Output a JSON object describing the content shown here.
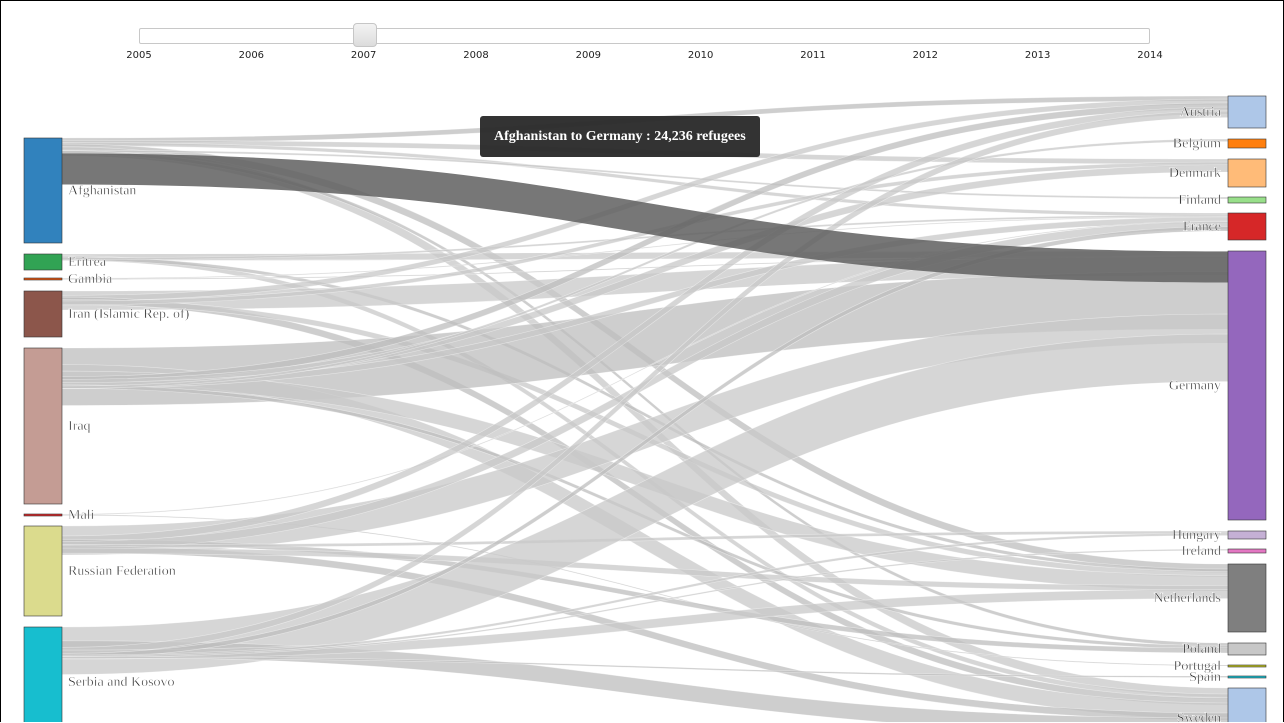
{
  "slider": {
    "years": [
      "2005",
      "2006",
      "2007",
      "2008",
      "2009",
      "2010",
      "2011",
      "2012",
      "2013",
      "2014"
    ],
    "selected_year": "2007"
  },
  "tooltip": {
    "text": "Afghanistan to Germany : 24,236 refugees"
  },
  "chart_data": {
    "type": "sankey",
    "title": "",
    "year": "2007",
    "sources": [
      {
        "name": "Afghanistan",
        "color": "#3182bd"
      },
      {
        "name": "Eritrea",
        "color": "#31a354"
      },
      {
        "name": "Gambia",
        "color": "#e6550d"
      },
      {
        "name": "Iran (Islamic Rep. of)",
        "color": "#8c564b"
      },
      {
        "name": "Iraq",
        "color": "#c49c94"
      },
      {
        "name": "Mali",
        "color": "#d62728"
      },
      {
        "name": "Russian Federation",
        "color": "#dbdb8d"
      },
      {
        "name": "Serbia and Kosovo",
        "color": "#17becf"
      }
    ],
    "targets": [
      {
        "name": "Austria",
        "color": "#aec7e8"
      },
      {
        "name": "Belgium",
        "color": "#ff7f0e"
      },
      {
        "name": "Denmark",
        "color": "#ffbb78"
      },
      {
        "name": "Finland",
        "color": "#98df8a"
      },
      {
        "name": "France",
        "color": "#d62728"
      },
      {
        "name": "Germany",
        "color": "#9467bd"
      },
      {
        "name": "Hungary",
        "color": "#c5b0d5"
      },
      {
        "name": "Ireland",
        "color": "#e377c2"
      },
      {
        "name": "Netherlands",
        "color": "#7f7f7f"
      },
      {
        "name": "Poland",
        "color": "#c7c7c7"
      },
      {
        "name": "Portugal",
        "color": "#bcbd22"
      },
      {
        "name": "Spain",
        "color": "#17becf"
      },
      {
        "name": "Sweden",
        "color": "#aec7e8"
      }
    ],
    "highlighted_link": {
      "source": "Afghanistan",
      "target": "Germany",
      "value": 24236
    }
  }
}
